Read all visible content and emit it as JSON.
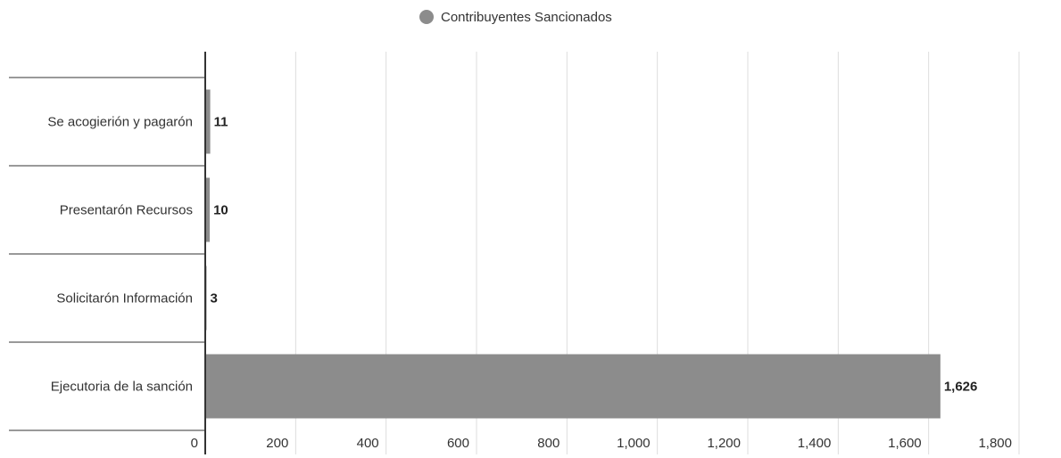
{
  "chart_data": {
    "type": "bar",
    "orientation": "horizontal",
    "title": "",
    "xlabel": "",
    "ylabel": "",
    "categories": [
      "Se acogierión y pagarón",
      "Presentarón Recursos",
      "Solicitarón Información",
      "Ejecutoria de la sanción"
    ],
    "series": [
      {
        "name": "Contribuyentes Sancionados",
        "values": [
          11,
          10,
          3,
          1626
        ],
        "color": "#8c8c8c"
      }
    ],
    "value_labels": [
      "11",
      "10",
      "3",
      "1,626"
    ],
    "xlim": [
      0,
      1800
    ],
    "x_ticks": [
      0,
      200,
      400,
      600,
      800,
      1000,
      1200,
      1400,
      1600,
      1800
    ],
    "x_tick_labels": [
      "0",
      "200",
      "400",
      "600",
      "800",
      "1,000",
      "1,200",
      "1,400",
      "1,600",
      "1,800"
    ],
    "grid": true,
    "legend_position": "top-center",
    "colors": {
      "bar": "#8c8c8c",
      "grid": "#dddddd",
      "axis": "#333333",
      "text": "#333333",
      "label": "#222222"
    }
  }
}
